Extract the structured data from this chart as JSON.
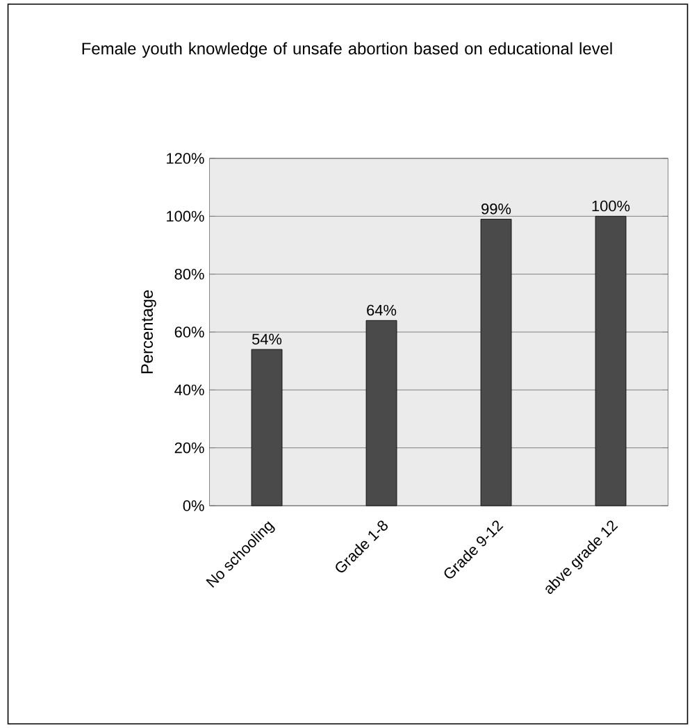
{
  "chart_data": {
    "type": "bar",
    "title": "Female youth knowledge of unsafe abortion based on educational level",
    "ylabel": "Percentage",
    "categories": [
      "No schooling",
      "Grade 1-8",
      "Grade 9-12",
      "abve grade 12"
    ],
    "values": [
      54,
      64,
      99,
      100
    ],
    "value_labels": [
      "54%",
      "64%",
      "99%",
      "100%"
    ],
    "color": "#4a4a4a",
    "ylim": [
      0,
      120
    ],
    "yticks": [
      {
        "value": 0,
        "label": "0%"
      },
      {
        "value": 20,
        "label": "20%"
      },
      {
        "value": 40,
        "label": "40%"
      },
      {
        "value": 60,
        "label": "60%"
      },
      {
        "value": 80,
        "label": "80%"
      },
      {
        "value": 100,
        "label": "100%"
      },
      {
        "value": 120,
        "label": "120%"
      }
    ],
    "grid": "y"
  }
}
